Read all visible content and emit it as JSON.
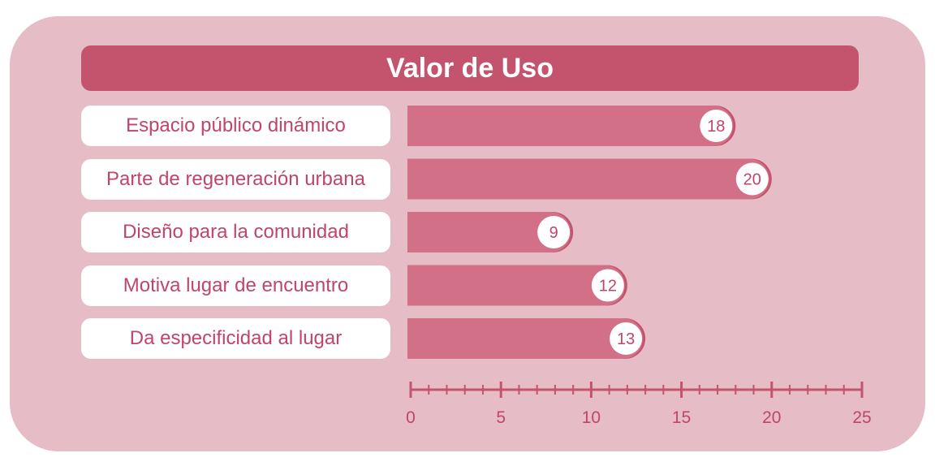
{
  "colors": {
    "background": "#e6bcc6",
    "title_bar": "#c4546d",
    "bar": "#d27088",
    "bar_shadow": "#c4546d",
    "label_text": "#c0456a",
    "axis": "#c4546d"
  },
  "chart_data": {
    "type": "bar",
    "orientation": "horizontal",
    "title": "Valor de Uso",
    "categories": [
      "Espacio público dinámico",
      "Parte de regeneración urbana",
      "Diseño para la comunidad",
      "Motiva lugar de encuentro",
      "Da especificidad al lugar"
    ],
    "values": [
      18,
      20,
      9,
      12,
      13
    ],
    "data_labels": [
      "18",
      "20",
      "9",
      "12",
      "13"
    ],
    "xlim": [
      0,
      25
    ],
    "x_ticks": [
      "0",
      "5",
      "10",
      "15",
      "20",
      "25"
    ],
    "minor_tick_step": 1,
    "grid": false,
    "legend": "none"
  }
}
